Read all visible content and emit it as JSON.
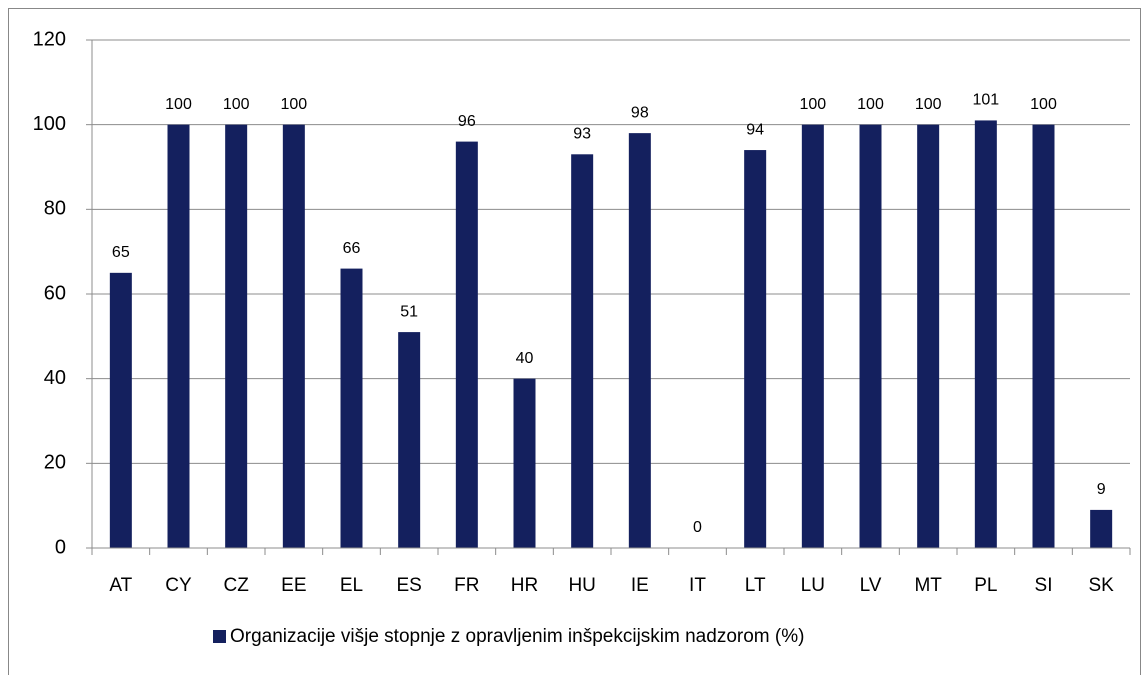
{
  "chart_data": {
    "type": "bar",
    "categories": [
      "AT",
      "CY",
      "CZ",
      "EE",
      "EL",
      "ES",
      "FR",
      "HR",
      "HU",
      "IE",
      "IT",
      "LT",
      "LU",
      "LV",
      "MT",
      "PL",
      "SI",
      "SK"
    ],
    "series": [
      {
        "name": "Organizacije višje stopnje z opravljenim inšpekcijskim nadzorom (%)",
        "color": "#14205e",
        "values": [
          65,
          100,
          100,
          100,
          66,
          51,
          96,
          40,
          93,
          98,
          0,
          94,
          100,
          100,
          100,
          101,
          100,
          9
        ]
      }
    ],
    "ylim": [
      0,
      120
    ],
    "yticks": [
      0,
      20,
      40,
      60,
      80,
      100,
      120
    ],
    "grid": true,
    "legend": "bottom"
  }
}
